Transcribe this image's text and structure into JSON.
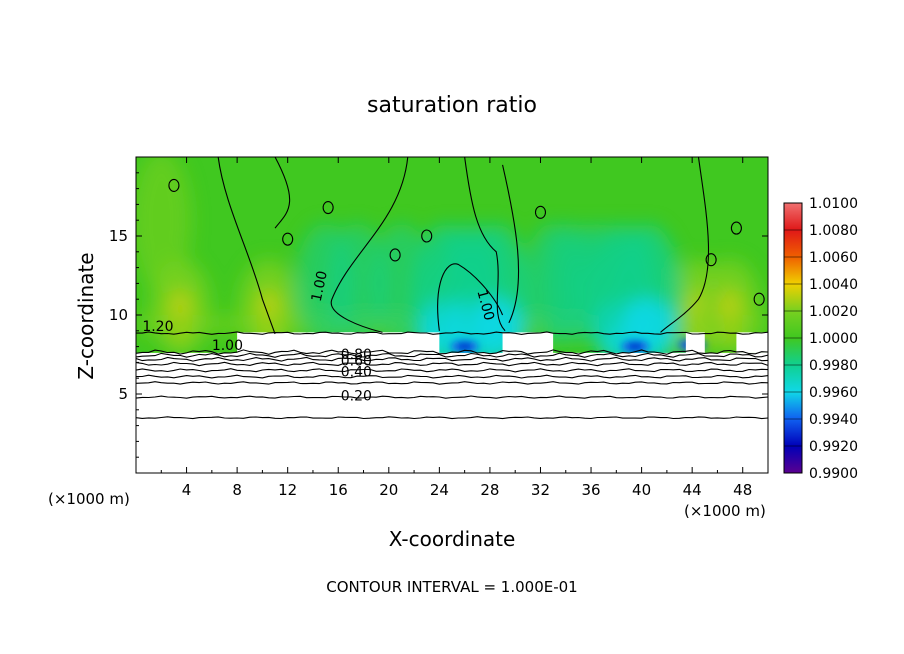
{
  "chart_data": {
    "type": "heatmap",
    "title": "saturation ratio",
    "xlabel": "X-coordinate",
    "ylabel": "Z-coordinate",
    "x_unit_left": "(×1000 m)",
    "x_unit_right": "(×1000 m)",
    "xlim": [
      0,
      50
    ],
    "ylim": [
      0,
      20
    ],
    "x_ticks": [
      "4",
      "8",
      "12",
      "16",
      "20",
      "24",
      "28",
      "32",
      "36",
      "40",
      "44",
      "48"
    ],
    "y_ticks": [
      "5",
      "10",
      "15"
    ],
    "footnote": "CONTOUR INTERVAL = 1.000E-01",
    "contour_labels": [
      "1.20",
      "1.00",
      "0.80",
      "0.60",
      "0.40",
      "0.20",
      "1.00",
      "1.00"
    ],
    "colorbar": {
      "levels": [
        "1.0100",
        "1.0080",
        "1.0060",
        "1.0040",
        "1.0020",
        "1.0000",
        "0.9980",
        "0.9960",
        "0.9940",
        "0.9920",
        "0.9900"
      ],
      "colors": [
        "#f07070",
        "#e01818",
        "#f06000",
        "#f0d000",
        "#78d020",
        "#40c820",
        "#10d090",
        "#10d8e8",
        "#1060f0",
        "#0000b8",
        "#5a0090"
      ]
    },
    "surface_contours": [
      0.2,
      0.4,
      0.6,
      0.8,
      1.0,
      1.2
    ],
    "dry_columns_x": [
      24.5,
      26.5,
      28.5,
      38.5,
      40.5
    ],
    "moist_columns_x": [
      3.5,
      10.5,
      44.5,
      47
    ]
  }
}
